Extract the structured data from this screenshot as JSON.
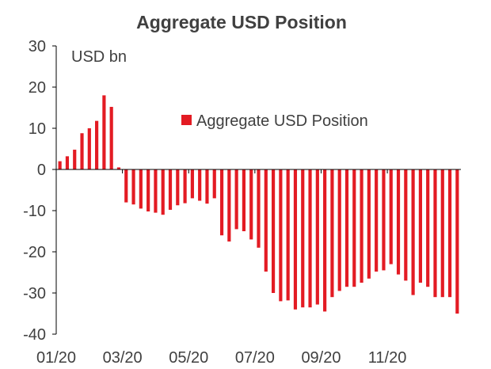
{
  "chart_data": {
    "type": "bar",
    "title": "Aggregate USD Position",
    "unit_label": "USD bn",
    "ylim": [
      -40,
      30
    ],
    "y_ticks": [
      30,
      20,
      10,
      0,
      -10,
      -20,
      -30,
      -40
    ],
    "x_tick_labels": [
      "01/20",
      "03/20",
      "05/20",
      "07/20",
      "09/20",
      "11/20"
    ],
    "x_tick_positions": [
      0,
      9,
      18,
      27,
      36,
      45
    ],
    "grid": false,
    "legend_position": "center-right",
    "series": [
      {
        "name": "Aggregate USD Position",
        "color": "#e31b23",
        "values": [
          2.0,
          3.2,
          4.8,
          8.8,
          10.0,
          11.8,
          18.0,
          15.2,
          0.5,
          -8.0,
          -8.5,
          -9.5,
          -10.2,
          -10.5,
          -11.0,
          -9.8,
          -8.7,
          -8.2,
          -7.0,
          -7.6,
          -8.3,
          -7.0,
          -16.0,
          -17.5,
          -14.5,
          -15.0,
          -17.0,
          -19.0,
          -24.8,
          -30.0,
          -32.0,
          -31.8,
          -34.0,
          -33.5,
          -33.5,
          -32.8,
          -34.5,
          -31.0,
          -29.5,
          -28.5,
          -28.5,
          -27.5,
          -26.5,
          -24.8,
          -24.5,
          -23.0,
          -25.5,
          -27.0,
          -30.5,
          -27.5,
          -28.5,
          -31.0,
          -31.0,
          -31.0,
          -35.0
        ]
      }
    ]
  }
}
